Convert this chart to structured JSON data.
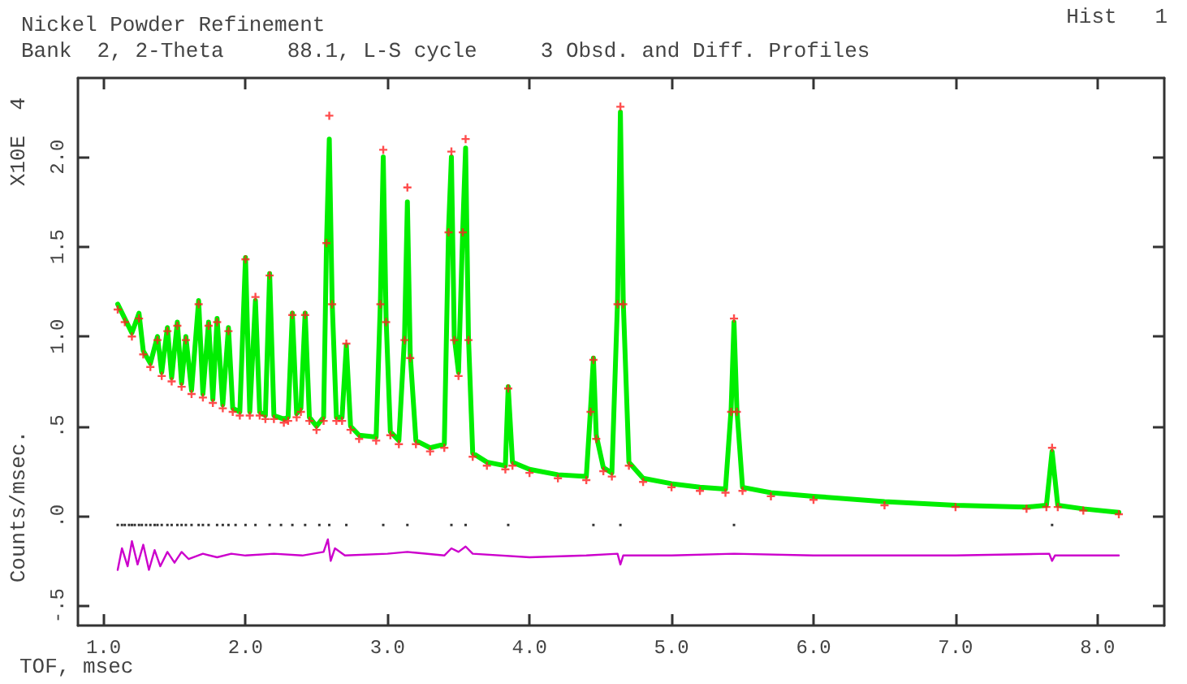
{
  "chart_data": {
    "type": "line",
    "title": "Nickel Powder Refinement",
    "subtitle": "Bank  2, 2-Theta     88.1, L-S cycle     3 Obsd. and Diff. Profiles",
    "xlabel": "TOF, msec",
    "ylabel": "Counts/msec.",
    "annotations": [
      "Hist   1",
      "X10E  4"
    ],
    "xlim": [
      0.82,
      8.47
    ],
    "ylim": [
      -0.61,
      2.44
    ],
    "xticks": [
      {
        "value": 1,
        "label": "1.0"
      },
      {
        "value": 2,
        "label": "2.0"
      },
      {
        "value": 3,
        "label": "3.0"
      },
      {
        "value": 4,
        "label": "4.0"
      },
      {
        "value": 5,
        "label": "5.0"
      },
      {
        "value": 6,
        "label": "6.0"
      },
      {
        "value": 7,
        "label": "7.0"
      },
      {
        "value": 8,
        "label": "8.0"
      }
    ],
    "yticks": [
      {
        "value": -0.5,
        "label": "-.5"
      },
      {
        "value": 0,
        "label": ".0"
      },
      {
        "value": 0.5,
        "label": ".5"
      },
      {
        "value": 1,
        "label": "1.0"
      },
      {
        "value": 1.5,
        "label": "1.5"
      },
      {
        "value": 2,
        "label": "2.0"
      }
    ],
    "grid": false,
    "series": [
      {
        "type": "line",
        "color": "#00ee00",
        "marker": "none",
        "line_style": "solid",
        "x": [
          1.1,
          1.15,
          1.2,
          1.25,
          1.28,
          1.33,
          1.38,
          1.41,
          1.45,
          1.48,
          1.52,
          1.55,
          1.58,
          1.62,
          1.67,
          1.7,
          1.74,
          1.77,
          1.8,
          1.84,
          1.88,
          1.91,
          1.96,
          2.0,
          2.03,
          2.07,
          2.1,
          2.14,
          2.17,
          2.2,
          2.27,
          2.3,
          2.33,
          2.36,
          2.39,
          2.42,
          2.45,
          2.5,
          2.55,
          2.57,
          2.59,
          2.61,
          2.64,
          2.68,
          2.71,
          2.74,
          2.8,
          2.92,
          2.95,
          2.97,
          2.99,
          3.02,
          3.08,
          3.12,
          3.14,
          3.16,
          3.2,
          3.3,
          3.4,
          3.43,
          3.45,
          3.47,
          3.5,
          3.53,
          3.55,
          3.57,
          3.6,
          3.7,
          3.83,
          3.85,
          3.88,
          4.0,
          4.2,
          4.4,
          4.43,
          4.45,
          4.47,
          4.52,
          4.58,
          4.62,
          4.64,
          4.66,
          4.7,
          4.8,
          5.0,
          5.2,
          5.38,
          5.42,
          5.44,
          5.46,
          5.5,
          5.7,
          6.0,
          6.5,
          7.0,
          7.5,
          7.64,
          7.68,
          7.72,
          7.9,
          8.15
        ],
        "values": [
          1.18,
          1.1,
          1.02,
          1.13,
          0.92,
          0.85,
          1.0,
          0.8,
          1.05,
          0.77,
          1.08,
          0.74,
          1.0,
          0.7,
          1.2,
          0.68,
          1.08,
          0.65,
          1.1,
          0.62,
          1.05,
          0.6,
          0.58,
          1.44,
          0.58,
          1.2,
          0.58,
          0.56,
          1.35,
          0.56,
          0.54,
          0.55,
          1.13,
          0.57,
          0.6,
          1.13,
          0.55,
          0.5,
          0.55,
          1.5,
          2.1,
          1.2,
          0.55,
          0.55,
          0.95,
          0.5,
          0.45,
          0.44,
          1.2,
          2.0,
          1.1,
          0.47,
          0.42,
          1.0,
          1.75,
          0.9,
          0.42,
          0.38,
          0.4,
          1.6,
          2.0,
          1.0,
          0.8,
          1.6,
          2.05,
          1.0,
          0.35,
          0.3,
          0.28,
          0.72,
          0.3,
          0.26,
          0.23,
          0.22,
          0.6,
          0.88,
          0.45,
          0.27,
          0.24,
          1.2,
          2.25,
          1.2,
          0.3,
          0.21,
          0.18,
          0.16,
          0.15,
          0.6,
          1.08,
          0.6,
          0.16,
          0.13,
          0.11,
          0.08,
          0.06,
          0.05,
          0.06,
          0.36,
          0.06,
          0.04,
          0.02
        ]
      },
      {
        "type": "scatter",
        "color": "#ff2020",
        "marker": "cross",
        "x": [
          1.1,
          1.15,
          1.2,
          1.25,
          1.28,
          1.33,
          1.38,
          1.41,
          1.45,
          1.48,
          1.52,
          1.55,
          1.58,
          1.62,
          1.67,
          1.7,
          1.74,
          1.77,
          1.8,
          1.84,
          1.88,
          1.91,
          1.96,
          2.0,
          2.03,
          2.07,
          2.1,
          2.14,
          2.17,
          2.2,
          2.27,
          2.3,
          2.33,
          2.36,
          2.39,
          2.42,
          2.45,
          2.5,
          2.55,
          2.57,
          2.59,
          2.61,
          2.64,
          2.68,
          2.71,
          2.74,
          2.8,
          2.92,
          2.95,
          2.97,
          2.99,
          3.02,
          3.08,
          3.12,
          3.14,
          3.16,
          3.2,
          3.3,
          3.4,
          3.43,
          3.45,
          3.47,
          3.5,
          3.53,
          3.55,
          3.57,
          3.6,
          3.7,
          3.83,
          3.85,
          3.88,
          4.0,
          4.2,
          4.4,
          4.43,
          4.45,
          4.47,
          4.52,
          4.58,
          4.62,
          4.64,
          4.66,
          4.7,
          4.8,
          5.0,
          5.2,
          5.38,
          5.42,
          5.44,
          5.46,
          5.5,
          5.7,
          6.0,
          6.5,
          7.0,
          7.5,
          7.64,
          7.68,
          7.72,
          7.9,
          8.15
        ],
        "values": [
          1.15,
          1.08,
          1.0,
          1.1,
          0.9,
          0.83,
          0.98,
          0.78,
          1.03,
          0.75,
          1.06,
          0.72,
          0.98,
          0.68,
          1.18,
          0.66,
          1.06,
          0.63,
          1.08,
          0.6,
          1.03,
          0.58,
          0.56,
          1.43,
          0.56,
          1.22,
          0.56,
          0.54,
          1.34,
          0.54,
          0.52,
          0.53,
          1.12,
          0.55,
          0.58,
          1.12,
          0.53,
          0.48,
          0.53,
          1.52,
          2.23,
          1.18,
          0.53,
          0.53,
          0.96,
          0.48,
          0.43,
          0.42,
          1.18,
          2.04,
          1.08,
          0.45,
          0.4,
          0.98,
          1.83,
          0.88,
          0.4,
          0.36,
          0.38,
          1.58,
          2.03,
          0.98,
          0.78,
          1.58,
          2.1,
          0.98,
          0.33,
          0.28,
          0.26,
          0.71,
          0.28,
          0.24,
          0.21,
          0.2,
          0.58,
          0.87,
          0.43,
          0.25,
          0.22,
          1.18,
          2.28,
          1.18,
          0.28,
          0.19,
          0.16,
          0.14,
          0.13,
          0.58,
          1.1,
          0.58,
          0.14,
          0.11,
          0.09,
          0.06,
          0.05,
          0.04,
          0.05,
          0.38,
          0.05,
          0.03,
          0.01
        ]
      },
      {
        "type": "scatter",
        "color": "#000000",
        "marker": "square",
        "x": [
          1.1,
          1.13,
          1.15,
          1.18,
          1.2,
          1.22,
          1.25,
          1.27,
          1.3,
          1.33,
          1.36,
          1.38,
          1.41,
          1.45,
          1.48,
          1.52,
          1.55,
          1.58,
          1.62,
          1.67,
          1.7,
          1.74,
          1.8,
          1.84,
          1.88,
          1.93,
          2.0,
          2.07,
          2.17,
          2.25,
          2.33,
          2.42,
          2.52,
          2.59,
          2.71,
          2.97,
          3.14,
          3.45,
          3.55,
          3.85,
          4.45,
          4.64,
          5.44,
          7.68
        ],
        "values": [
          -0.05,
          -0.05,
          -0.05,
          -0.05,
          -0.05,
          -0.05,
          -0.05,
          -0.05,
          -0.05,
          -0.05,
          -0.05,
          -0.05,
          -0.05,
          -0.05,
          -0.05,
          -0.05,
          -0.05,
          -0.05,
          -0.05,
          -0.05,
          -0.05,
          -0.05,
          -0.05,
          -0.05,
          -0.05,
          -0.05,
          -0.05,
          -0.05,
          -0.05,
          -0.05,
          -0.05,
          -0.05,
          -0.05,
          -0.05,
          -0.05,
          -0.05,
          -0.05,
          -0.05,
          -0.05,
          -0.05,
          -0.05,
          -0.05,
          -0.05,
          -0.05
        ]
      },
      {
        "type": "line",
        "color": "#cc00cc",
        "marker": "none",
        "line_style": "solid",
        "x": [
          1.1,
          1.13,
          1.17,
          1.2,
          1.24,
          1.28,
          1.32,
          1.36,
          1.4,
          1.45,
          1.5,
          1.55,
          1.6,
          1.7,
          1.8,
          1.9,
          2.0,
          2.2,
          2.4,
          2.55,
          2.58,
          2.6,
          2.63,
          2.7,
          3.0,
          3.14,
          3.4,
          3.45,
          3.5,
          3.55,
          3.6,
          4.0,
          4.4,
          4.62,
          4.64,
          4.66,
          5.0,
          5.44,
          6.0,
          7.0,
          7.66,
          7.68,
          7.7,
          8.15
        ],
        "values": [
          -0.3,
          -0.18,
          -0.28,
          -0.14,
          -0.27,
          -0.16,
          -0.3,
          -0.19,
          -0.28,
          -0.2,
          -0.26,
          -0.2,
          -0.24,
          -0.21,
          -0.23,
          -0.21,
          -0.22,
          -0.21,
          -0.22,
          -0.2,
          -0.13,
          -0.25,
          -0.18,
          -0.22,
          -0.21,
          -0.2,
          -0.22,
          -0.18,
          -0.2,
          -0.17,
          -0.21,
          -0.23,
          -0.22,
          -0.21,
          -0.27,
          -0.22,
          -0.22,
          -0.21,
          -0.22,
          -0.22,
          -0.21,
          -0.25,
          -0.22,
          -0.22
        ]
      }
    ]
  }
}
